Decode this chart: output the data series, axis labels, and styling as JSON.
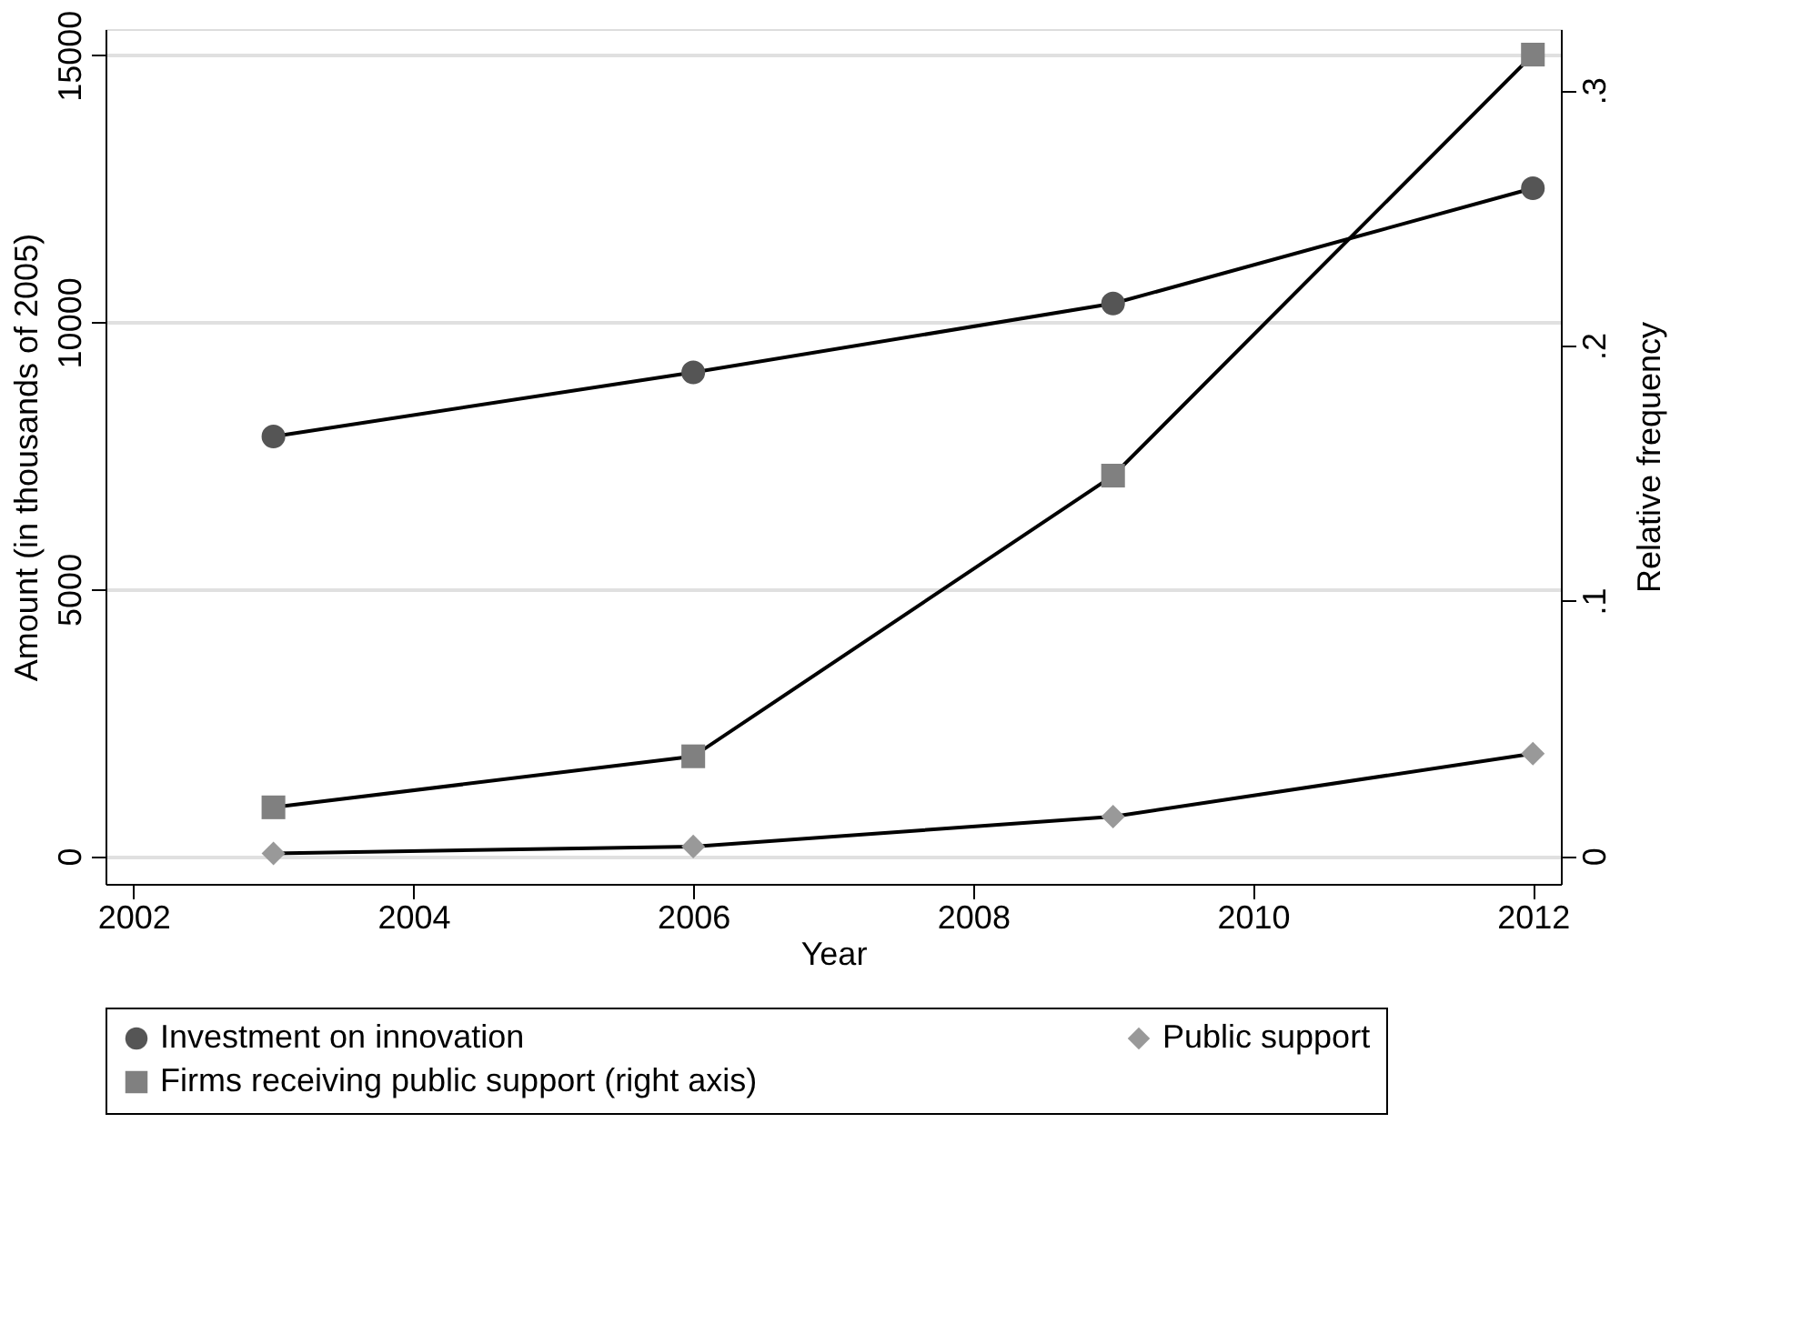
{
  "chart_data": {
    "type": "line",
    "xlabel": "Year",
    "ylabel": "Amount (in thousands of 2005)",
    "y2label": "Relative frequency",
    "x": [
      2003,
      2006,
      2009,
      2012
    ],
    "xlim": [
      2001.8,
      2012.2
    ],
    "xticks": [
      2002,
      2004,
      2006,
      2008,
      2010,
      2012
    ],
    "ylim": [
      -520,
      15490
    ],
    "yticks": [
      0,
      5000,
      10000,
      15000
    ],
    "y2lim": [
      -0.011,
      0.324
    ],
    "y2ticks": [
      0,
      {
        "value": 0.1,
        "label": ".1"
      },
      {
        "value": 0.2,
        "label": ".2"
      },
      {
        "value": 0.3,
        "label": ".3"
      }
    ],
    "grid": "y",
    "legend": "bottom",
    "line_style": "solid",
    "series": [
      {
        "name": "Investment on innovation",
        "color": "#555555",
        "marker": "circle",
        "values": [
          7860,
          9060,
          10350,
          12510
        ]
      },
      {
        "name": "Public support",
        "color": "#999999",
        "marker": "diamond",
        "values": [
          50,
          180,
          740,
          1920
        ]
      },
      {
        "name": "Firms receiving public support (right axis)",
        "color": "#808080",
        "marker": "square",
        "axis": "y2",
        "values": [
          0.019,
          0.039,
          0.149,
          0.314
        ]
      }
    ]
  }
}
